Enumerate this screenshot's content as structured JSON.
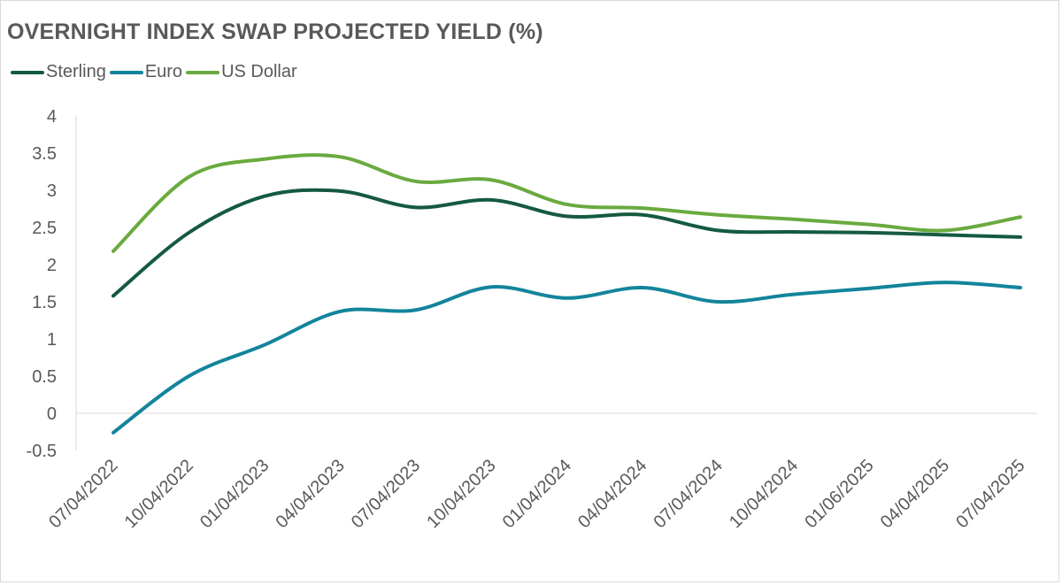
{
  "chart_data": {
    "type": "line",
    "title": "OVERNIGHT INDEX SWAP PROJECTED YIELD (%)",
    "xlabel": "",
    "ylabel": "",
    "ylim": [
      -0.5,
      4
    ],
    "yticks": [
      -0.5,
      0,
      0.5,
      1,
      1.5,
      2,
      2.5,
      3,
      3.5,
      4
    ],
    "ytick_labels": [
      "-0.5",
      "0",
      "0.5",
      "1",
      "1.5",
      "2",
      "2.5",
      "3",
      "3.5",
      "4"
    ],
    "grid": false,
    "legend_position": "top-left",
    "categories": [
      "07/04/2022",
      "10/04/2022",
      "01/04/2023",
      "04/04/2023",
      "07/04/2023",
      "10/04/2023",
      "01/04/2024",
      "04/04/2024",
      "07/04/2024",
      "10/04/2024",
      "01/06/2025",
      "04/04/2025",
      "07/04/2025"
    ],
    "series": [
      {
        "name": "Sterling",
        "color": "#155a40",
        "values": [
          1.58,
          2.43,
          2.92,
          2.99,
          2.77,
          2.87,
          2.65,
          2.67,
          2.46,
          2.44,
          2.43,
          2.4,
          2.37
        ]
      },
      {
        "name": "Euro",
        "color": "#13849c",
        "values": [
          -0.26,
          0.5,
          0.92,
          1.37,
          1.39,
          1.7,
          1.55,
          1.69,
          1.5,
          1.6,
          1.68,
          1.76,
          1.69
        ]
      },
      {
        "name": "US Dollar",
        "color": "#6aaa3f",
        "values": [
          2.18,
          3.18,
          3.42,
          3.45,
          3.12,
          3.14,
          2.81,
          2.76,
          2.67,
          2.61,
          2.54,
          2.46,
          2.64
        ]
      }
    ]
  }
}
